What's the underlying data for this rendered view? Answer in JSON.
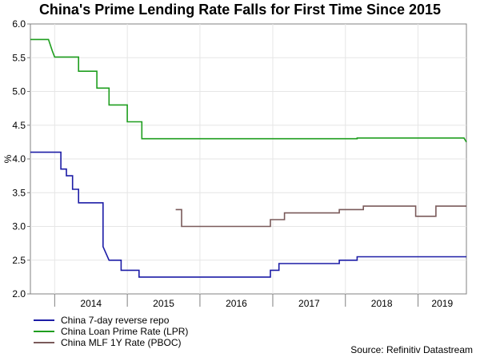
{
  "chart_data": {
    "type": "line",
    "title": "China's Prime Lending Rate Falls for First Time Since 2015",
    "ylabel": "%",
    "xlabel": "",
    "ylim": [
      2.0,
      6.0
    ],
    "xlim": [
      "2013-09-01",
      "2019-09-01"
    ],
    "y_ticks": [
      "2.0",
      "2.5",
      "3.0",
      "3.5",
      "4.0",
      "4.5",
      "5.0",
      "5.5",
      "6.0"
    ],
    "x_ticks": [
      "2014",
      "2015",
      "2016",
      "2017",
      "2018",
      "2019"
    ],
    "legend_position": "bottom-left",
    "source": "Source: Refinitiv Datastream",
    "series": [
      {
        "name": "China 7-day reverse repo",
        "color": "#1c1ca6",
        "points": [
          [
            "2013-09-01",
            4.1
          ],
          [
            "2014-02-01",
            4.1
          ],
          [
            "2014-02-01",
            3.85
          ],
          [
            "2014-03-01",
            3.85
          ],
          [
            "2014-03-01",
            3.75
          ],
          [
            "2014-04-01",
            3.75
          ],
          [
            "2014-04-01",
            3.55
          ],
          [
            "2014-05-01",
            3.55
          ],
          [
            "2014-05-01",
            3.35
          ],
          [
            "2014-09-01",
            3.35
          ],
          [
            "2014-09-01",
            2.7
          ],
          [
            "2014-10-01",
            2.5
          ],
          [
            "2014-12-01",
            2.5
          ],
          [
            "2014-12-01",
            2.35
          ],
          [
            "2015-03-01",
            2.35
          ],
          [
            "2015-03-01",
            2.25
          ],
          [
            "2016-12-20",
            2.25
          ],
          [
            "2016-12-20",
            2.35
          ],
          [
            "2017-02-01",
            2.35
          ],
          [
            "2017-02-01",
            2.45
          ],
          [
            "2017-12-01",
            2.45
          ],
          [
            "2017-12-01",
            2.5
          ],
          [
            "2018-03-01",
            2.5
          ],
          [
            "2018-03-01",
            2.55
          ],
          [
            "2019-09-01",
            2.55
          ]
        ]
      },
      {
        "name": "China Loan Prime Rate (LPR)",
        "color": "#1e9e1e",
        "points": [
          [
            "2013-09-01",
            5.77
          ],
          [
            "2013-12-01",
            5.77
          ],
          [
            "2013-12-20",
            5.6
          ],
          [
            "2014-01-01",
            5.51
          ],
          [
            "2014-05-01",
            5.51
          ],
          [
            "2014-05-01",
            5.3
          ],
          [
            "2014-08-01",
            5.3
          ],
          [
            "2014-08-01",
            5.05
          ],
          [
            "2014-10-01",
            5.05
          ],
          [
            "2014-10-01",
            4.8
          ],
          [
            "2015-01-01",
            4.8
          ],
          [
            "2015-01-01",
            4.55
          ],
          [
            "2015-03-15",
            4.55
          ],
          [
            "2015-03-15",
            4.3
          ],
          [
            "2018-03-01",
            4.3
          ],
          [
            "2018-03-01",
            4.31
          ],
          [
            "2019-08-20",
            4.31
          ],
          [
            "2019-09-01",
            4.25
          ]
        ]
      },
      {
        "name": "China MLF 1Y Rate (PBOC)",
        "color": "#7a5a5a",
        "points": [
          [
            "2015-09-01",
            3.25
          ],
          [
            "2015-10-01",
            3.25
          ],
          [
            "2015-10-01",
            3.0
          ],
          [
            "2016-12-20",
            3.0
          ],
          [
            "2016-12-20",
            3.1
          ],
          [
            "2017-03-01",
            3.1
          ],
          [
            "2017-03-01",
            3.2
          ],
          [
            "2017-12-01",
            3.2
          ],
          [
            "2017-12-01",
            3.25
          ],
          [
            "2018-04-01",
            3.25
          ],
          [
            "2018-04-01",
            3.3
          ],
          [
            "2018-12-20",
            3.3
          ],
          [
            "2018-12-20",
            3.15
          ],
          [
            "2019-04-01",
            3.15
          ],
          [
            "2019-04-01",
            3.3
          ],
          [
            "2019-09-01",
            3.3
          ]
        ]
      }
    ]
  }
}
